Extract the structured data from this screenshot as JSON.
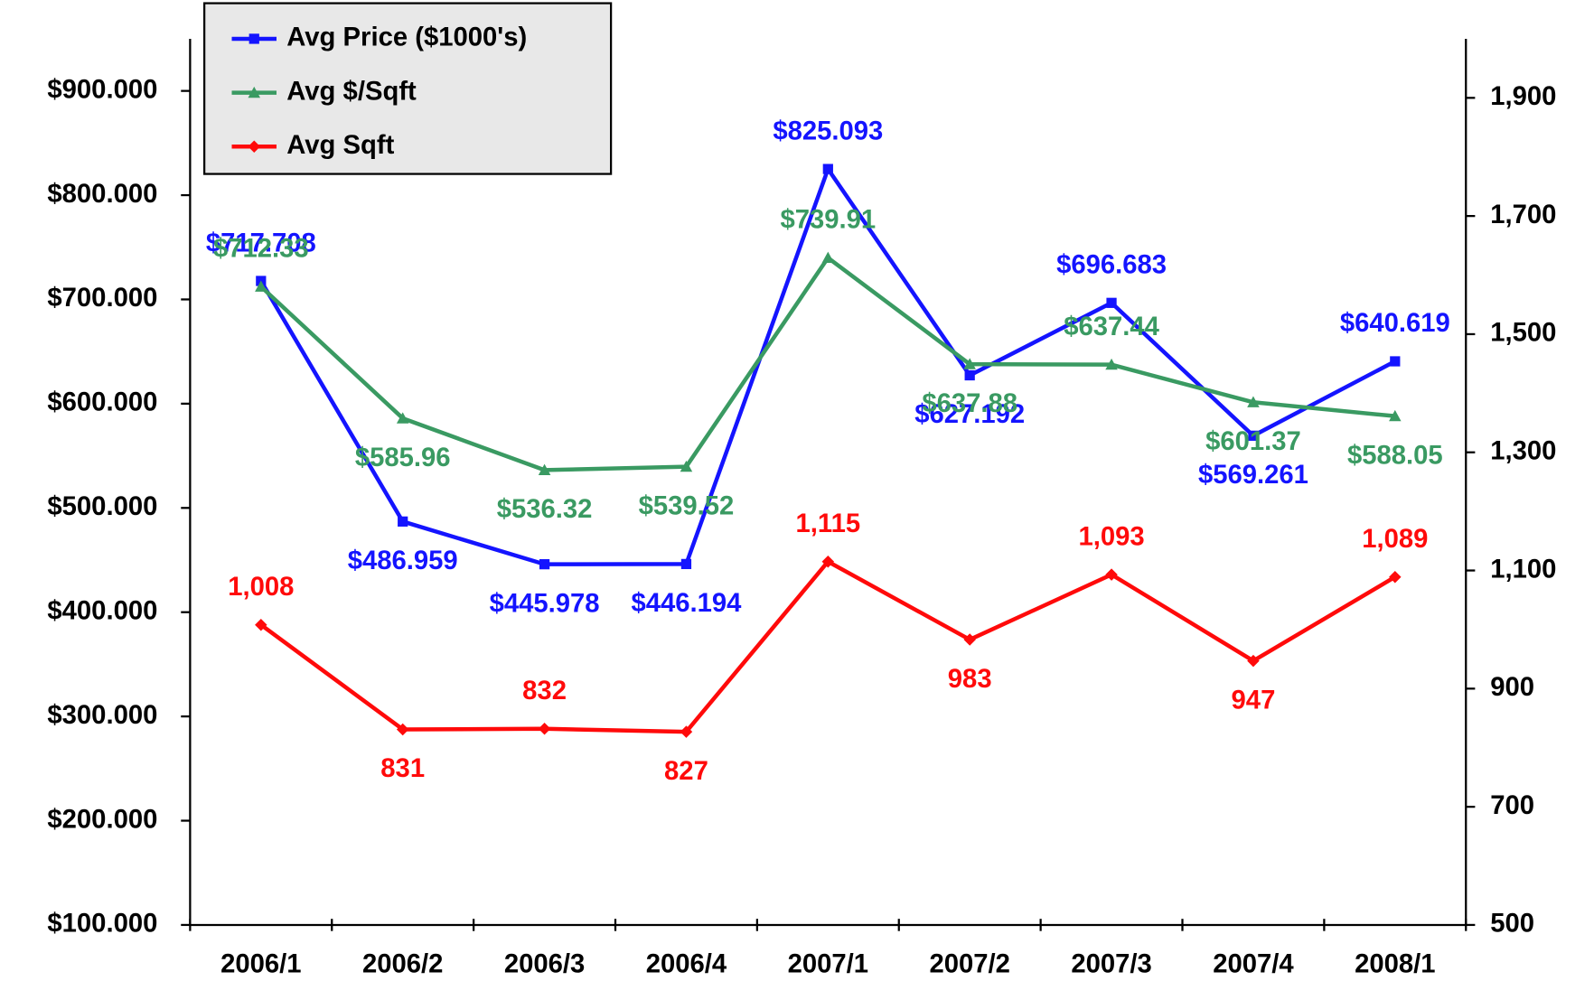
{
  "chart_data": {
    "type": "line",
    "categories": [
      "2006/1",
      "2006/2",
      "2006/3",
      "2006/4",
      "2007/1",
      "2007/2",
      "2007/3",
      "2007/4",
      "2008/1"
    ],
    "series": [
      {
        "name": "Avg Price ($1000's)",
        "color": "#1414ff",
        "marker": "square",
        "axis": "y",
        "values": [
          717.708,
          486.959,
          445.978,
          446.194,
          825.093,
          627.192,
          696.683,
          569.261,
          640.619
        ],
        "value_labels": [
          "$717.708",
          "$486.959",
          "$445.978",
          "$446.194",
          "$825.093",
          "$627.192",
          "$696.683",
          "$569.261",
          "$640.619"
        ]
      },
      {
        "name": "Avg $/Sqft",
        "color": "#3a9a62",
        "marker": "triangle",
        "axis": "y",
        "values": [
          712.33,
          585.96,
          536.32,
          539.52,
          739.91,
          637.88,
          637.44,
          601.37,
          588.05
        ],
        "value_labels": [
          "$712.33",
          "$585.96",
          "$536.32",
          "$539.52",
          "$739.91",
          "$637.88",
          "$637.44",
          "$601.37",
          "$588.05"
        ]
      },
      {
        "name": "Avg Sqft",
        "color": "#ff0a0a",
        "marker": "diamond",
        "axis": "y2",
        "values": [
          1008,
          831,
          832,
          827,
          1115,
          983,
          1093,
          947,
          1089
        ],
        "value_labels": [
          "1,008",
          "831",
          "832",
          "827",
          "1,115",
          "983",
          "1,093",
          "947",
          "1,089"
        ]
      }
    ],
    "ylim": [
      100,
      950
    ],
    "yticks": [
      {
        "value": 100,
        "label": "$100.000"
      },
      {
        "value": 200,
        "label": "$200.000"
      },
      {
        "value": 300,
        "label": "$300.000"
      },
      {
        "value": 400,
        "label": "$400.000"
      },
      {
        "value": 500,
        "label": "$500.000"
      },
      {
        "value": 600,
        "label": "$600.000"
      },
      {
        "value": 700,
        "label": "$700.000"
      },
      {
        "value": 800,
        "label": "$800.000"
      },
      {
        "value": 900,
        "label": "$900.000"
      }
    ],
    "y2lim": [
      500,
      2000
    ],
    "y2ticks": [
      500,
      700,
      900,
      {
        "value": 1100,
        "label": "1,100"
      },
      {
        "value": 1300,
        "label": "1,300"
      },
      {
        "value": 1500,
        "label": "1,500"
      },
      {
        "value": 1700,
        "label": "1,700"
      },
      {
        "value": 1900,
        "label": "1,900"
      }
    ],
    "legend": "upper left",
    "grid": false
  }
}
